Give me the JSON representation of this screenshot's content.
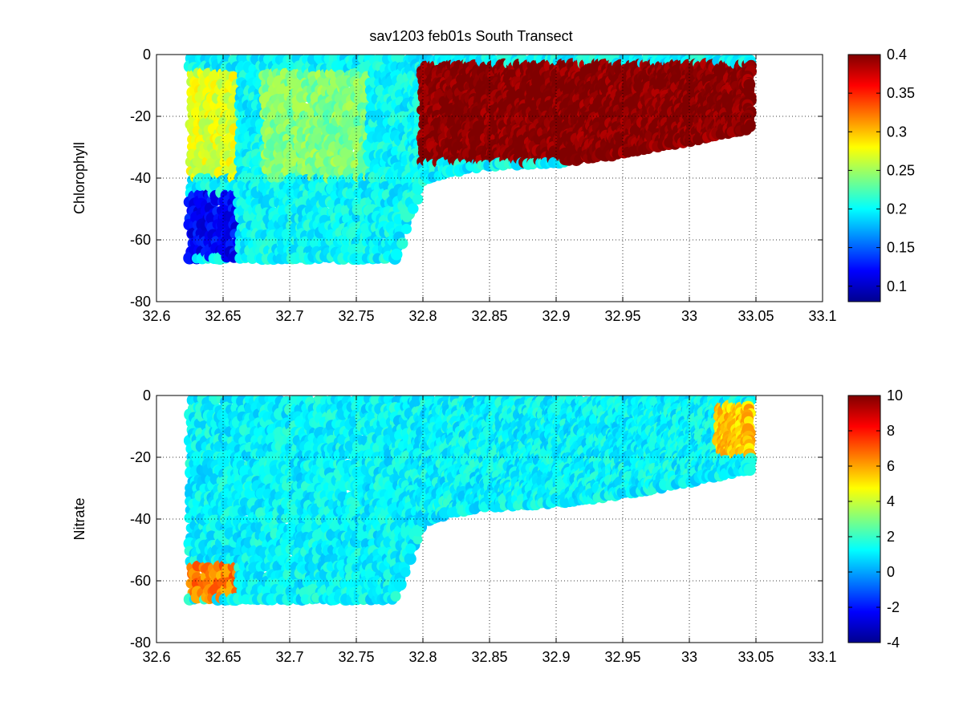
{
  "title": "sav1203 feb01s   South Transect",
  "chart_data": [
    {
      "type": "heatmap",
      "title": "sav1203 feb01s   South Transect",
      "xlabel": "",
      "ylabel": "Chlorophyll",
      "xlim": [
        32.6,
        33.1
      ],
      "ylim": [
        -80,
        0
      ],
      "xticks": [
        "32.6",
        "32.65",
        "32.7",
        "32.75",
        "32.8",
        "32.85",
        "32.9",
        "32.95",
        "33",
        "33.05",
        "33.1"
      ],
      "yticks": [
        "0",
        "-20",
        "-40",
        "-60",
        "-80"
      ],
      "grid": true,
      "colormap": "jet",
      "clim": [
        0.08,
        0.4
      ],
      "colorbar_ticks": [
        "0.4",
        "0.35",
        "0.3",
        "0.25",
        "0.2",
        "0.15",
        "0.1"
      ],
      "extent_x": [
        32.626,
        33.045
      ],
      "bottom_depth_profile": [
        [
          32.626,
          -66
        ],
        [
          32.78,
          -66
        ],
        [
          32.79,
          -52
        ],
        [
          32.8,
          -41
        ],
        [
          32.82,
          -38
        ],
        [
          32.85,
          -36
        ],
        [
          32.9,
          -35
        ],
        [
          32.95,
          -32
        ],
        [
          33.0,
          -28
        ],
        [
          33.045,
          -24
        ]
      ],
      "regions": [
        {
          "x": [
            32.626,
            32.66
          ],
          "y": [
            -66,
            -45
          ],
          "value": 0.12
        },
        {
          "x": [
            32.626,
            32.66
          ],
          "y": [
            -40,
            -5
          ],
          "value": 0.27
        },
        {
          "x": [
            32.66,
            32.78
          ],
          "y": [
            -60,
            -30
          ],
          "value": 0.2
        },
        {
          "x": [
            32.68,
            32.76
          ],
          "y": [
            -40,
            -5
          ],
          "value": 0.24
        },
        {
          "x": [
            32.8,
            33.045
          ],
          "y": [
            -35,
            -3
          ],
          "value": 0.4
        }
      ]
    },
    {
      "type": "heatmap",
      "title": "",
      "xlabel": "",
      "ylabel": "Nitrate",
      "xlim": [
        32.6,
        33.1
      ],
      "ylim": [
        -80,
        0
      ],
      "xticks": [
        "32.6",
        "32.65",
        "32.7",
        "32.75",
        "32.8",
        "32.85",
        "32.9",
        "32.95",
        "33",
        "33.05",
        "33.1"
      ],
      "yticks": [
        "0",
        "-20",
        "-40",
        "-60",
        "-80"
      ],
      "grid": true,
      "colormap": "jet",
      "clim": [
        -4,
        10
      ],
      "colorbar_ticks": [
        "10",
        "8",
        "6",
        "4",
        "2",
        "0",
        "-2",
        "-4"
      ],
      "extent_x": [
        32.626,
        33.045
      ],
      "bottom_depth_profile": [
        [
          32.626,
          -66
        ],
        [
          32.78,
          -66
        ],
        [
          32.79,
          -52
        ],
        [
          32.8,
          -41
        ],
        [
          32.82,
          -38
        ],
        [
          32.85,
          -36
        ],
        [
          32.9,
          -35
        ],
        [
          32.95,
          -32
        ],
        [
          33.0,
          -28
        ],
        [
          33.045,
          -24
        ]
      ],
      "regions": [
        {
          "x": [
            32.626,
            33.045
          ],
          "y": [
            -66,
            0
          ],
          "value": 1.2
        },
        {
          "x": [
            32.626,
            32.66
          ],
          "y": [
            -66,
            -55
          ],
          "value": 6.5
        },
        {
          "x": [
            33.02,
            33.045
          ],
          "y": [
            -20,
            -3
          ],
          "value": 5.5
        }
      ]
    }
  ]
}
